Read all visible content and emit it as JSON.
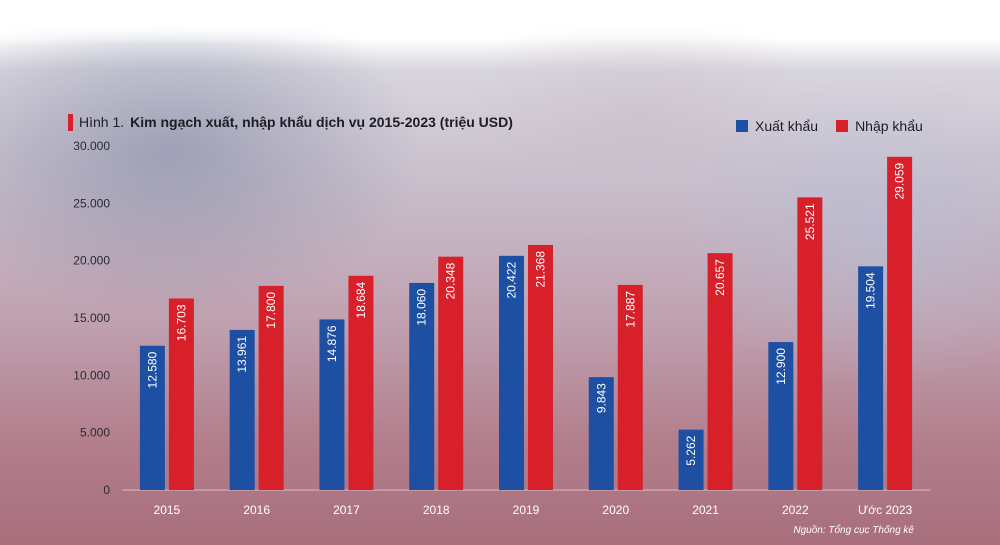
{
  "chart_data": {
    "type": "bar",
    "title_prefix": "Hình 1.",
    "title": "Kim ngạch xuất, nhập khẩu dịch vụ 2015-2023 (triệu USD)",
    "categories": [
      "2015",
      "2016",
      "2017",
      "2018",
      "2019",
      "2020",
      "2021",
      "2022",
      "Ước 2023"
    ],
    "series": [
      {
        "name": "Xuất khẩu",
        "color": "#1d4fa3",
        "values": [
          12580,
          13961,
          14876,
          18060,
          20422,
          9843,
          5262,
          12900,
          19504
        ],
        "labels": [
          "12.580",
          "13.961",
          "14.876",
          "18.060",
          "20.422",
          "9.843",
          "5.262",
          "12.900",
          "19.504"
        ]
      },
      {
        "name": "Nhập khẩu",
        "color": "#d8202b",
        "values": [
          16703,
          17800,
          18684,
          20348,
          21368,
          17887,
          20657,
          25521,
          29059
        ],
        "labels": [
          "16.703",
          "17.800",
          "18.684",
          "20.348",
          "21.368",
          "17.887",
          "20.657",
          "25.521",
          "29.059"
        ]
      }
    ],
    "yticks": [
      0,
      5000,
      10000,
      15000,
      20000,
      25000,
      30000
    ],
    "ytick_labels": [
      "0",
      "5.000",
      "10.000",
      "15.000",
      "20.000",
      "25.000",
      "30.000"
    ],
    "ylim": [
      0,
      30000
    ],
    "xlabel": "",
    "ylabel": "",
    "grid": false,
    "legend_position": "top-right"
  },
  "source": "Nguồn: Tổng cục Thống kê"
}
